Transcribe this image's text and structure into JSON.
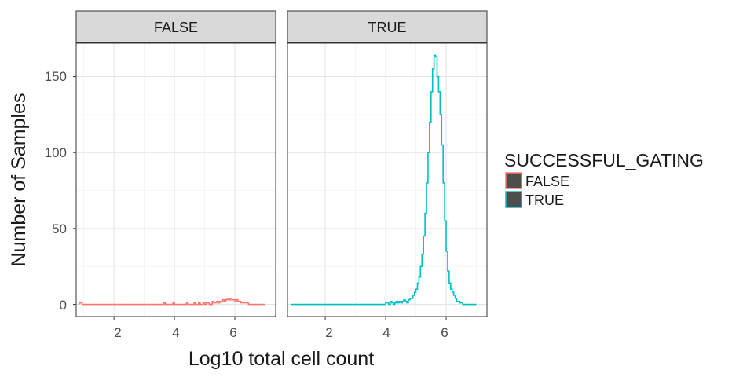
{
  "chart_data": {
    "type": "histogram",
    "xlabel": "Log10 total cell count",
    "ylabel": "Number of Samples",
    "xlim": [
      0.75,
      7.35
    ],
    "ylim": [
      -8,
      172
    ],
    "x_ticks": [
      2,
      4,
      6
    ],
    "x_tick_labels": [
      "2",
      "4",
      "6"
    ],
    "y_ticks": [
      0,
      50,
      100,
      150
    ],
    "y_tick_labels": [
      "0",
      "50",
      "100",
      "150"
    ],
    "grid": true,
    "bin_start": 0.85,
    "bin_width": 0.05,
    "legend": {
      "title": "SUCCESSFUL_GATING",
      "placement": "right",
      "entries": [
        {
          "label": "FALSE",
          "color": "#F8766D"
        },
        {
          "label": "TRUE",
          "color": "#00BFC4"
        }
      ]
    },
    "panels": [
      {
        "strip": "FALSE",
        "color": "#F8766D",
        "values": [
          1,
          1,
          0,
          0,
          0,
          0,
          0,
          0,
          0,
          0,
          0,
          0,
          0,
          0,
          0,
          0,
          0,
          0,
          0,
          0,
          0,
          0,
          0,
          0,
          0,
          0,
          0,
          0,
          0,
          0,
          0,
          0,
          0,
          0,
          0,
          0,
          0,
          0,
          0,
          0,
          0,
          0,
          0,
          0,
          0,
          0,
          0,
          0,
          0,
          0,
          0,
          0,
          0,
          0,
          0,
          0,
          1,
          0,
          0,
          0,
          0,
          0,
          1,
          0,
          0,
          0,
          0,
          0,
          0,
          0,
          0,
          1,
          0,
          0,
          0,
          0,
          1,
          0,
          0,
          1,
          0,
          0,
          1,
          0,
          1,
          1,
          0,
          0,
          2,
          1,
          1,
          2,
          1,
          2,
          2,
          3,
          2,
          3,
          4,
          3,
          4,
          3,
          3,
          2,
          3,
          2,
          2,
          1,
          1,
          1,
          1,
          1,
          0,
          0,
          0,
          0,
          0,
          0,
          0,
          0,
          0,
          0,
          0
        ]
      },
      {
        "strip": "TRUE",
        "color": "#00BFC4",
        "values": [
          0,
          0,
          0,
          0,
          0,
          0,
          0,
          0,
          0,
          0,
          0,
          0,
          0,
          0,
          0,
          0,
          0,
          0,
          0,
          0,
          0,
          0,
          0,
          0,
          0,
          0,
          0,
          0,
          0,
          0,
          0,
          0,
          0,
          0,
          0,
          0,
          0,
          0,
          0,
          0,
          0,
          0,
          0,
          0,
          0,
          0,
          0,
          0,
          0,
          0,
          0,
          0,
          0,
          0,
          0,
          0,
          0,
          0,
          0,
          0,
          0,
          0,
          0,
          1,
          1,
          0,
          2,
          1,
          0,
          1,
          2,
          1,
          2,
          1,
          2,
          3,
          2,
          1,
          3,
          4,
          4,
          6,
          8,
          10,
          14,
          18,
          25,
          33,
          45,
          60,
          80,
          100,
          120,
          140,
          155,
          164,
          163,
          150,
          140,
          125,
          105,
          80,
          55,
          35,
          22,
          14,
          10,
          8,
          6,
          4,
          2,
          2,
          1,
          1,
          0,
          0,
          0,
          0,
          0,
          0,
          0,
          0,
          0
        ]
      }
    ]
  }
}
